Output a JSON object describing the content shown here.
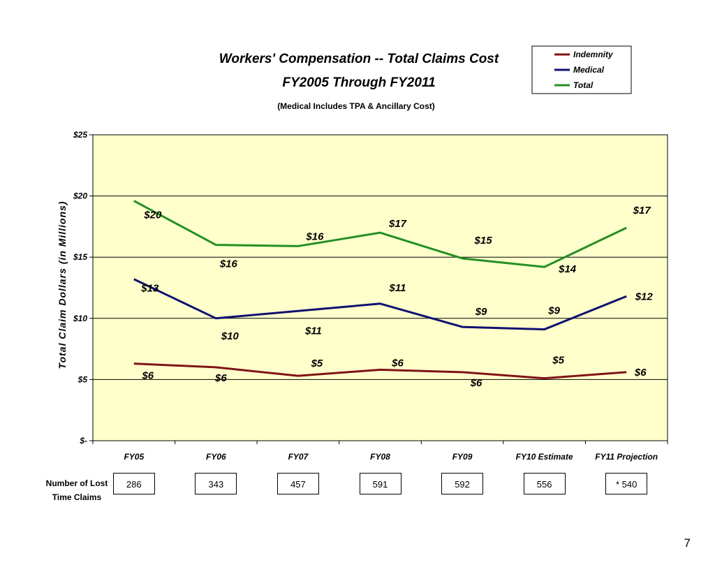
{
  "chart_data": {
    "type": "line",
    "title": "Workers' Compensation -- Total Claims Cost",
    "subtitle": "FY2005 Through FY2011",
    "note": "(Medical Includes TPA & Ancillary Cost)",
    "ylabel": "Total Claim Dollars (in Millions)",
    "xlabel": "",
    "ylim": [
      0,
      25
    ],
    "yticks": [
      0,
      5,
      10,
      15,
      20,
      25
    ],
    "ytick_labels": [
      "$-",
      "$5",
      "$10",
      "$15",
      "$20",
      "$25"
    ],
    "categories": [
      "FY05",
      "FY06",
      "FY07",
      "FY08",
      "FY09",
      "FY10 Estimate",
      "FY11 Projection"
    ],
    "grid": true,
    "legend_position": "top-right",
    "plot_background": "#FFFFCC",
    "series": [
      {
        "name": "Indemnity",
        "color": "#7F1416",
        "values": [
          6.3,
          6.0,
          5.3,
          5.8,
          5.6,
          5.1,
          5.6
        ],
        "labels": [
          "$6",
          "$6",
          "$5",
          "$6",
          "$6",
          "$5",
          "$6"
        ]
      },
      {
        "name": "Medical",
        "color": "#101070",
        "values": [
          13.2,
          10.0,
          10.6,
          11.2,
          9.3,
          9.1,
          11.8
        ],
        "labels": [
          "$13",
          "$10",
          "$11",
          "$11",
          "$9",
          "$9",
          "$12"
        ]
      },
      {
        "name": "Total",
        "color": "#248F24",
        "values": [
          19.6,
          16.0,
          15.9,
          17.0,
          14.9,
          14.2,
          17.4
        ],
        "labels": [
          "$20",
          "$16",
          "$16",
          "$17",
          "$15",
          "$14",
          "$17"
        ]
      }
    ]
  },
  "lost_time_claims": {
    "label": "Number of Lost Time Claims",
    "values": [
      "286",
      "343",
      "457",
      "591",
      "592",
      "556",
      "* 540"
    ]
  },
  "page_number": "7"
}
